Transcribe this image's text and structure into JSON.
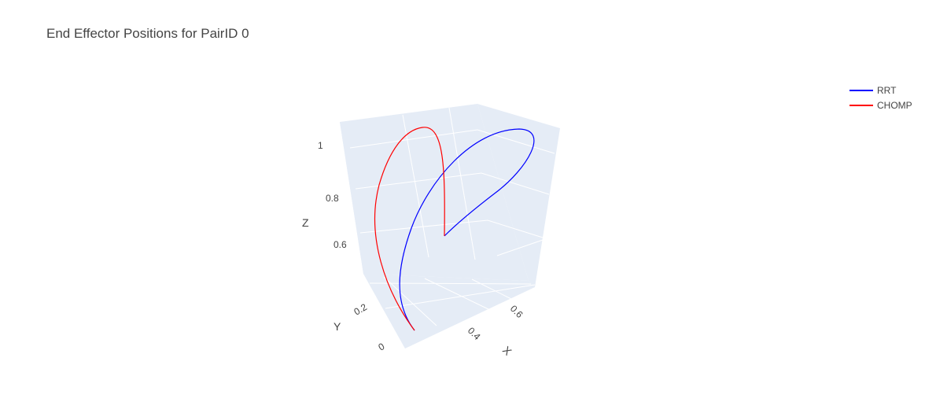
{
  "title": "End Effector Positions for PairID 0",
  "colors": {
    "pane": "#e5ecf6",
    "grid": "#ffffff",
    "rrt": "#0000ff",
    "chomp": "#ff0000",
    "text": "#444444"
  },
  "chart_data": {
    "type": "line",
    "title": "End Effector Positions for PairID 0",
    "scene": "3d",
    "axes": {
      "x": {
        "label": "X",
        "ticks": [
          "0.4",
          "0.6"
        ]
      },
      "y": {
        "label": "Y",
        "ticks": [
          "0",
          "0.2"
        ]
      },
      "z": {
        "label": "Z",
        "ticks": [
          "0.6",
          "0.8",
          "1"
        ]
      }
    },
    "legend": {
      "placement": "top-right",
      "entries": [
        "RRT",
        "CHOMP"
      ]
    },
    "series": [
      {
        "name": "RRT",
        "color": "#0000ff",
        "start": [
          0.48,
          0.02,
          0.38
        ],
        "end": [
          0.36,
          0.26,
          0.62
        ]
      },
      {
        "name": "CHOMP",
        "color": "#ff0000",
        "start": [
          0.48,
          0.02,
          0.38
        ],
        "end": [
          0.36,
          0.26,
          0.62
        ]
      }
    ]
  }
}
